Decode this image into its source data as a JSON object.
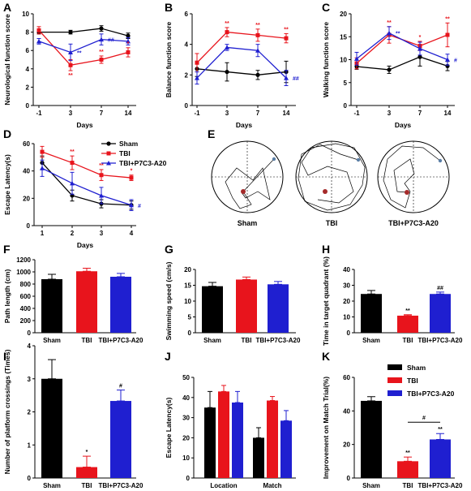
{
  "colors": {
    "sham": "#000000",
    "tbi": "#e8141c",
    "p7c3": "#1f1fd0"
  },
  "legend_d": {
    "entries": [
      "Sham",
      "TBI",
      "TBI+P7C3-A20"
    ]
  },
  "legend_k": {
    "entries": [
      "Sham",
      "TBI",
      "TBI+P7C3-A20"
    ]
  },
  "panel_e": {
    "label": "E",
    "captions": [
      "Sham",
      "TBI",
      "TBI+P7C3-A20"
    ],
    "marker_colors": {
      "platform": "#a52a2a",
      "start": "#5b7fa6"
    }
  },
  "chart_data": [
    {
      "id": "A",
      "type": "line",
      "ylabel": "Neurological function score",
      "xlabel": "Days",
      "categories": [
        "-1",
        "3",
        "7",
        "14"
      ],
      "ylim": [
        0,
        10
      ],
      "yticks": [
        "0",
        "2",
        "4",
        "6",
        "8",
        "10"
      ],
      "series": [
        {
          "name": "Sham",
          "values": [
            8.0,
            8.0,
            8.4,
            7.6
          ],
          "err": [
            0.2,
            0.2,
            0.3,
            0.3
          ]
        },
        {
          "name": "TBI",
          "values": [
            8.2,
            4.4,
            5.0,
            5.8
          ],
          "err": [
            0.4,
            0.6,
            0.4,
            0.5
          ]
        },
        {
          "name": "TBI+P7C3-A20",
          "values": [
            7.0,
            5.8,
            7.2,
            7.0
          ],
          "err": [
            0.3,
            0.9,
            0.6,
            0.4
          ]
        }
      ],
      "annotations": [
        {
          "cat": 1,
          "series": "TBI",
          "text": "**"
        },
        {
          "cat": 1,
          "series": "TBI+P7C3-A20",
          "text": "**"
        },
        {
          "cat": 2,
          "series": "TBI",
          "text": "**"
        },
        {
          "cat": 2,
          "series": "TBI+P7C3-A20",
          "text": "##"
        },
        {
          "cat": 3,
          "series": "TBI",
          "text": "*"
        }
      ]
    },
    {
      "id": "B",
      "type": "line",
      "ylabel": "Balance function score",
      "xlabel": "Days",
      "categories": [
        "-1",
        "3",
        "7",
        "14"
      ],
      "ylim": [
        0,
        6
      ],
      "yticks": [
        "0",
        "2",
        "4",
        "6"
      ],
      "series": [
        {
          "name": "Sham",
          "values": [
            2.4,
            2.2,
            2.0,
            2.2
          ],
          "err": [
            0.5,
            0.6,
            0.3,
            0.7
          ]
        },
        {
          "name": "TBI",
          "values": [
            2.8,
            4.8,
            4.6,
            4.4
          ],
          "err": [
            0.6,
            0.3,
            0.4,
            0.3
          ]
        },
        {
          "name": "TBI+P7C3-A20",
          "values": [
            1.8,
            3.8,
            3.6,
            1.8
          ],
          "err": [
            0.4,
            0.2,
            0.4,
            0.5
          ]
        }
      ],
      "annotations": [
        {
          "cat": 1,
          "series": "TBI",
          "text": "**"
        },
        {
          "cat": 2,
          "series": "TBI",
          "text": "**"
        },
        {
          "cat": 3,
          "series": "TBI",
          "text": "**"
        },
        {
          "cat": 3,
          "series": "TBI+P7C3-A20",
          "text": "##"
        }
      ]
    },
    {
      "id": "C",
      "type": "line",
      "ylabel": "Walking function score",
      "xlabel": "Days",
      "categories": [
        "-1",
        "3",
        "7",
        "14"
      ],
      "ylim": [
        0,
        20
      ],
      "yticks": [
        "0",
        "5",
        "10",
        "15",
        "20"
      ],
      "series": [
        {
          "name": "Sham",
          "values": [
            8.5,
            7.8,
            10.6,
            8.6
          ],
          "err": [
            0.6,
            0.8,
            2.0,
            1.0
          ]
        },
        {
          "name": "TBI",
          "values": [
            9.2,
            15.4,
            13.0,
            15.4
          ],
          "err": [
            1.2,
            1.8,
            1.0,
            2.6
          ]
        },
        {
          "name": "TBI+P7C3-A20",
          "values": [
            10.2,
            15.8,
            12.4,
            10.0
          ],
          "err": [
            1.4,
            1.4,
            1.4,
            1.2
          ]
        }
      ],
      "annotations": [
        {
          "cat": 1,
          "series": "TBI",
          "text": "**"
        },
        {
          "cat": 1,
          "series": "TBI+P7C3-A20",
          "text": "**"
        },
        {
          "cat": 2,
          "series": "TBI",
          "text": "*"
        },
        {
          "cat": 3,
          "series": "TBI",
          "text": "**"
        },
        {
          "cat": 3,
          "series": "TBI+P7C3-A20",
          "text": "#"
        }
      ]
    },
    {
      "id": "D",
      "type": "line",
      "ylabel": "Escape Latency(s)",
      "xlabel": "Days",
      "categories": [
        "1",
        "2",
        "3",
        "4"
      ],
      "ylim": [
        0,
        60
      ],
      "yticks": [
        "0",
        "20",
        "40",
        "60"
      ],
      "series": [
        {
          "name": "Sham",
          "values": [
            46,
            22,
            16,
            15
          ],
          "err": [
            5,
            4,
            3,
            3
          ]
        },
        {
          "name": "TBI",
          "values": [
            54,
            46,
            37,
            35
          ],
          "err": [
            4,
            5,
            4,
            2
          ]
        },
        {
          "name": "TBI+P7C3-A20",
          "values": [
            42,
            31,
            22,
            15
          ],
          "err": [
            6,
            8,
            6,
            4
          ]
        }
      ],
      "annotations": [
        {
          "cat": 1,
          "series": "TBI",
          "text": "**"
        },
        {
          "cat": 2,
          "series": "TBI",
          "text": "**"
        },
        {
          "cat": 3,
          "series": "TBI",
          "text": "*"
        },
        {
          "cat": 3,
          "series": "TBI+P7C3-A20",
          "text": "#"
        }
      ]
    },
    {
      "id": "F",
      "type": "bar",
      "ylabel": "Path length (cm)",
      "categories": [
        "Sham",
        "TBI",
        "TBI+P7C3-A20"
      ],
      "ylim": [
        0,
        1200
      ],
      "yticks": [
        "0",
        "200",
        "400",
        "600",
        "800",
        "1000",
        "1200"
      ],
      "values": [
        880,
        1010,
        920
      ],
      "err": [
        80,
        50,
        55
      ],
      "annotations": []
    },
    {
      "id": "G",
      "type": "bar",
      "ylabel": "Swimming speed (cm/s)",
      "categories": [
        "Sham",
        "TBI",
        "TBI+P7C3-A20"
      ],
      "ylim": [
        0,
        20
      ],
      "yticks": [
        "0",
        "5",
        "10",
        "15",
        "20"
      ],
      "values": [
        14.7,
        16.8,
        15.3
      ],
      "err": [
        1.2,
        0.8,
        0.9
      ],
      "annotations": []
    },
    {
      "id": "H",
      "type": "bar",
      "ylabel": "Time in target quadrant (%)",
      "categories": [
        "Sham",
        "TBI",
        "TBI+P7C3-A20"
      ],
      "ylim": [
        0,
        40
      ],
      "yticks": [
        "0",
        "10",
        "20",
        "30",
        "40"
      ],
      "values": [
        24.5,
        10.8,
        24.5
      ],
      "err": [
        2.2,
        0.6,
        1.2
      ],
      "annotations": [
        {
          "bar": 1,
          "text": "**"
        },
        {
          "bar": 2,
          "text": "##"
        }
      ]
    },
    {
      "id": "I",
      "type": "bar",
      "ylabel": "Number of platform crossings (Times)",
      "categories": [
        "Sham",
        "TBI",
        "TBI+P7C3-A20"
      ],
      "ylim": [
        0,
        4
      ],
      "yticks": [
        "0",
        "1",
        "2",
        "3",
        "4"
      ],
      "values": [
        3.0,
        0.33,
        2.33
      ],
      "err": [
        0.58,
        0.33,
        0.33
      ],
      "annotations": [
        {
          "bar": 1,
          "text": "*"
        },
        {
          "bar": 2,
          "text": "#"
        }
      ]
    },
    {
      "id": "J",
      "type": "bar",
      "ylabel": "Escape Latency(s)",
      "categories": [
        "Location",
        "Match"
      ],
      "ylim": [
        0,
        50
      ],
      "yticks": [
        "0",
        "10",
        "20",
        "30",
        "40",
        "50"
      ],
      "series": [
        {
          "name": "Sham",
          "values": [
            35,
            20
          ],
          "err": [
            8,
            5
          ]
        },
        {
          "name": "TBI",
          "values": [
            43,
            38.5
          ],
          "err": [
            3,
            2
          ]
        },
        {
          "name": "TBI+P7C3-A20",
          "values": [
            37.5,
            28.5
          ],
          "err": [
            5.5,
            5
          ]
        }
      ],
      "annotations": []
    },
    {
      "id": "K",
      "type": "bar",
      "ylabel": "Improvement on Match Trial(%)",
      "categories": [
        "Sham",
        "TBI",
        "TBI+P7C3-A20"
      ],
      "ylim": [
        0,
        60
      ],
      "yticks": [
        "0",
        "20",
        "40",
        "60"
      ],
      "values": [
        46,
        10,
        23
      ],
      "err": [
        2.5,
        2.5,
        3.5
      ],
      "annotations": [
        {
          "bar": 1,
          "text": "**"
        },
        {
          "bar": 2,
          "text": "**"
        },
        {
          "bracket": [
            1,
            2
          ],
          "text": "#"
        }
      ]
    }
  ]
}
